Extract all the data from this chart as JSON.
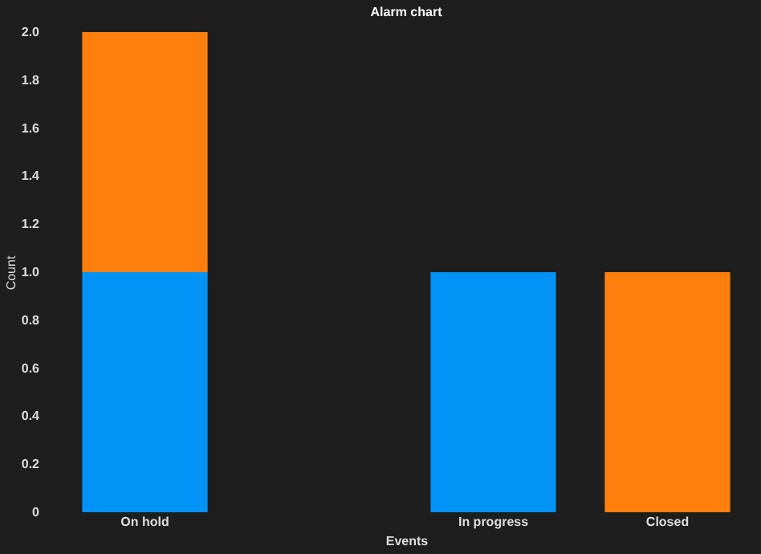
{
  "chart_data": {
    "type": "bar",
    "stacked": true,
    "title": "Alarm chart",
    "xlabel": "Events",
    "ylabel": "Count",
    "categories": [
      "On hold",
      null,
      "In progress",
      "Closed"
    ],
    "series": [
      {
        "color": "#0093f5",
        "values": [
          1,
          null,
          1,
          null
        ]
      },
      {
        "color": "#ff7f0e",
        "values": [
          1,
          null,
          null,
          1
        ]
      }
    ],
    "ylim": [
      0,
      2
    ],
    "yticks": [
      0,
      0.2,
      0.4,
      0.6,
      0.8,
      {
        "value": 1,
        "label": "1.0"
      },
      1.2,
      1.4,
      1.6,
      1.8,
      {
        "value": 2,
        "label": "2.0"
      }
    ],
    "grid": false,
    "legend": false
  }
}
